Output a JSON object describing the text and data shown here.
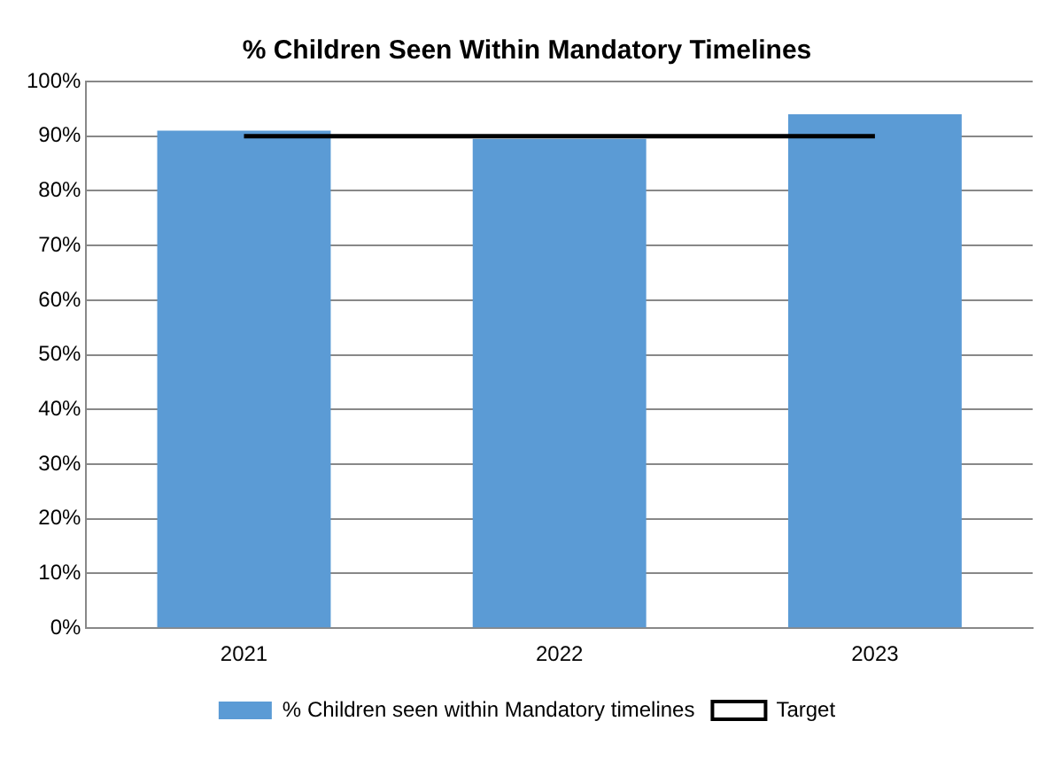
{
  "chart_data": {
    "type": "bar",
    "title": "% Children Seen Within Mandatory Timelines",
    "categories": [
      "2021",
      "2022",
      "2023"
    ],
    "series": [
      {
        "name": "% Children seen within Mandatory timelines",
        "color": "#5b9bd5",
        "values": [
          91,
          89.5,
          94
        ]
      },
      {
        "name": "Target",
        "type": "line",
        "color": "#000000",
        "values": [
          90,
          90,
          90
        ],
        "marker": "none"
      }
    ],
    "ylim": [
      0,
      100
    ],
    "yticks": [
      {
        "value": 0,
        "label": "0%"
      },
      {
        "value": 10,
        "label": "10%"
      },
      {
        "value": 20,
        "label": "20%"
      },
      {
        "value": 30,
        "label": "30%"
      },
      {
        "value": 40,
        "label": "40%"
      },
      {
        "value": 50,
        "label": "50%"
      },
      {
        "value": 60,
        "label": "60%"
      },
      {
        "value": 70,
        "label": "70%"
      },
      {
        "value": 80,
        "label": "80%"
      },
      {
        "value": 90,
        "label": "90%"
      },
      {
        "value": 100,
        "label": "100%"
      }
    ],
    "grid": "y",
    "legend": "bottom"
  }
}
